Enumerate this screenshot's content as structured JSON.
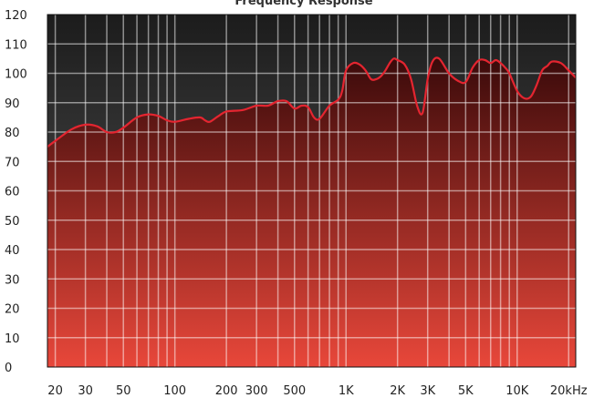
{
  "chart_data": {
    "type": "area",
    "title": "Frequency Response",
    "xlabel": "",
    "ylabel": "",
    "x_scale": "log",
    "xlim": [
      18,
      22000
    ],
    "ylim": [
      0,
      120
    ],
    "grid": true,
    "y_ticks": [
      0,
      10,
      20,
      30,
      40,
      50,
      60,
      70,
      80,
      90,
      100,
      110,
      120
    ],
    "y_tick_labels": [
      "0",
      "10",
      "20",
      "30",
      "40",
      "50",
      "60",
      "70",
      "80",
      "90",
      "100",
      "110",
      "120"
    ],
    "x_ticks": [
      20,
      30,
      50,
      100,
      200,
      300,
      500,
      1000,
      2000,
      3000,
      5000,
      10000,
      20000
    ],
    "x_tick_labels": [
      "20",
      "30",
      "50",
      "100",
      "200",
      "300",
      "500",
      "1K",
      "2K",
      "3K",
      "5K",
      "10K",
      "20kHz"
    ],
    "x_minor_gridlines": [
      40,
      60,
      70,
      80,
      90,
      400,
      600,
      700,
      800,
      900,
      4000,
      6000,
      7000,
      8000,
      9000
    ],
    "x": [
      18,
      20,
      25,
      30,
      35,
      40,
      45,
      50,
      60,
      70,
      80,
      90,
      100,
      120,
      140,
      150,
      160,
      180,
      200,
      250,
      300,
      350,
      400,
      450,
      500,
      550,
      600,
      650,
      700,
      800,
      900,
      950,
      1000,
      1100,
      1200,
      1300,
      1400,
      1500,
      1600,
      1700,
      1800,
      1900,
      2000,
      2200,
      2400,
      2600,
      2800,
      3000,
      3200,
      3500,
      4000,
      4500,
      5000,
      5500,
      6000,
      6500,
      7000,
      7500,
      8000,
      8500,
      9000,
      10000,
      11000,
      12000,
      13000,
      14000,
      15000,
      16000,
      18000,
      20000,
      22000
    ],
    "y": [
      75,
      77,
      81,
      82.5,
      82,
      80,
      80,
      81.5,
      85,
      86,
      85.5,
      84,
      83.5,
      84.5,
      85,
      84,
      83.5,
      85.5,
      87,
      87.5,
      89,
      89,
      90.5,
      90.5,
      88,
      89,
      88.5,
      85,
      84.5,
      89,
      91,
      94,
      101,
      103.5,
      103,
      101,
      98,
      98,
      99,
      101,
      103.5,
      105,
      104.5,
      103,
      98,
      89,
      86.5,
      98,
      104,
      105,
      100,
      97.5,
      97,
      102,
      104.5,
      104.5,
      103.5,
      104.5,
      103.5,
      102,
      100,
      94,
      91.5,
      92,
      96,
      101,
      102.5,
      104,
      103.5,
      101,
      98.5
    ],
    "colors": {
      "line": "#e42530",
      "fill_top": "#3a0a0a",
      "fill_bottom": "#e8473a",
      "plot_bg_top": "#1c1c1c",
      "plot_bg_bottom": "#5a5a5a",
      "grid": "#ffffff"
    }
  }
}
